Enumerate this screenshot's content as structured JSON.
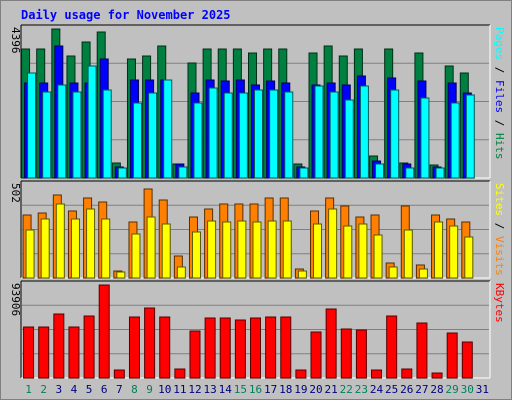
{
  "chart_data": {
    "type": "bar",
    "title": "Daily usage for November 2025",
    "categories": [
      "1",
      "2",
      "3",
      "4",
      "5",
      "6",
      "7",
      "8",
      "9",
      "10",
      "11",
      "12",
      "13",
      "14",
      "15",
      "16",
      "17",
      "18",
      "19",
      "20",
      "21",
      "22",
      "23",
      "24",
      "25",
      "26",
      "27",
      "28",
      "29",
      "30",
      "31"
    ],
    "weekend_days": [
      "1",
      "2",
      "8",
      "9",
      "15",
      "16",
      "22",
      "23",
      "29",
      "30"
    ],
    "panels": [
      {
        "id": "hits",
        "ylabel_max": "4396",
        "ymax": 4396,
        "legend": [
          "Pages",
          "Files",
          "Hits"
        ],
        "series": [
          {
            "name": "Hits",
            "color": "#008040",
            "values": [
              3800,
              3800,
              4400,
              3600,
              4000,
              4300,
              440,
              3500,
              3600,
              3900,
              400,
              3400,
              3800,
              3800,
              3800,
              3700,
              3800,
              3800,
              400,
              3700,
              3900,
              3600,
              3800,
              650,
              3800,
              440,
              3700,
              380,
              3300,
              3100,
              0
            ]
          },
          {
            "name": "Files",
            "color": "#0000ff",
            "values": [
              2800,
              2800,
              3900,
              2800,
              2800,
              3500,
              330,
              2900,
              2900,
              2900,
              400,
              2500,
              2900,
              2850,
              2900,
              2750,
              2850,
              2800,
              330,
              2750,
              2800,
              2750,
              3000,
              500,
              2950,
              400,
              2850,
              330,
              2800,
              2500,
              0
            ]
          },
          {
            "name": "Pages",
            "color": "#00ffff",
            "values": [
              3100,
              2550,
              2750,
              2550,
              3300,
              2600,
              300,
              2200,
              2500,
              2900,
              310,
              2200,
              2650,
              2500,
              2500,
              2600,
              2600,
              2550,
              300,
              2700,
              2550,
              2300,
              2700,
              400,
              2600,
              290,
              2350,
              290,
              2200,
              2450,
              0
            ]
          }
        ]
      },
      {
        "id": "visits",
        "ylabel_max": "502",
        "ymax": 502,
        "legend": [
          "Sites",
          "Visits"
        ],
        "series": [
          {
            "name": "Visits",
            "color": "#ff8000",
            "values": [
              340,
              350,
              450,
              360,
              430,
              410,
              40,
              300,
              480,
              420,
              120,
              330,
              370,
              400,
              400,
              400,
              430,
              430,
              50,
              360,
              430,
              390,
              330,
              340,
              80,
              390,
              70,
              340,
              320,
              300,
              0
            ]
          },
          {
            "name": "Sites",
            "color": "#ffff00",
            "values": [
              260,
              320,
              400,
              320,
              370,
              320,
              30,
              240,
              330,
              290,
              60,
              250,
              310,
              300,
              310,
              300,
              310,
              310,
              40,
              290,
              370,
              280,
              290,
              230,
              60,
              260,
              50,
              300,
              280,
              220,
              0
            ]
          }
        ]
      },
      {
        "id": "kbytes",
        "ylabel_max": "93906",
        "ymax": 93906,
        "legend": [
          "KBytes"
        ],
        "series": [
          {
            "name": "KBytes",
            "color": "#ff0000",
            "values": [
              51000,
              51000,
              65000,
              52000,
              63000,
              93906,
              8000,
              62000,
              71000,
              62000,
              9000,
              47000,
              61000,
              61000,
              59000,
              61000,
              62000,
              62000,
              8000,
              46000,
              70000,
              49000,
              48000,
              8000,
              63000,
              9000,
              56000,
              5000,
              45000,
              36000,
              0
            ]
          }
        ]
      }
    ]
  },
  "colors": {
    "background": "#c0c0c0",
    "plot_background": "#c0c0c0",
    "title": "#0000ff",
    "gridline": "#808080",
    "weekday_label": "#000080",
    "weekend_label": "#00805c"
  }
}
